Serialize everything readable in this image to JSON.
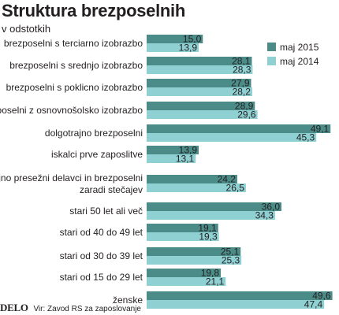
{
  "colors": {
    "series_2015": "#4b8b88",
    "series_2014": "#8fd0d3",
    "text": "#231f20"
  },
  "footer": {
    "logo": "DELO",
    "source": "Vir: Zavod RS za zaposlovanje"
  },
  "chart_data": {
    "type": "bar",
    "orientation": "horizontal",
    "title": "Struktura brezposelnih",
    "subtitle": "v odstotkih",
    "categories": [
      "brezposelni s terciarno izobrazbo",
      "brezposelni s srednjo izobrazbo",
      "brezposelni s poklicno izobrazbo",
      "brezposelni z osnovnošolsko izobrazbo",
      "dolgotrajno brezposelni",
      "iskalci prve zaposlitve",
      "trajno presežni delavci in brezposelni zaradi stečajev",
      "stari 50 let ali več",
      "stari od 40 do 49 let",
      "stari od 30 do 39 let",
      "stari od 15 do 29 let",
      "ženske"
    ],
    "category_lines": [
      [
        "brezposelni s terciarno izobrazbo"
      ],
      [
        "brezposelni s srednjo izobrazbo"
      ],
      [
        "brezposelni s poklicno izobrazbo"
      ],
      [
        "brezposelni z osnovnošolsko izobrazbo"
      ],
      [
        "dolgotrajno brezposelni"
      ],
      [
        "iskalci prve zaposlitve"
      ],
      [
        "trajno presežni delavci in brezposelni",
        "zaradi stečajev"
      ],
      [
        "stari 50 let ali več"
      ],
      [
        "stari od 40 do 49 let"
      ],
      [
        "stari od 30 do 39 let"
      ],
      [
        "stari od 15 do 29 let"
      ],
      [
        "ženske"
      ]
    ],
    "series": [
      {
        "name": "maj 2015",
        "values": [
          15.0,
          28.1,
          27.9,
          28.9,
          49.1,
          13.9,
          24.2,
          36.0,
          19.1,
          25.1,
          19.8,
          49.6
        ],
        "labels": [
          "15,0",
          "28,1",
          "27,9",
          "28,9",
          "49,1",
          "13,9",
          "24,2",
          "36,0",
          "19,1",
          "25,1",
          "19,8",
          "49,6"
        ]
      },
      {
        "name": "maj 2014",
        "values": [
          13.9,
          28.3,
          28.2,
          29.6,
          45.3,
          13.1,
          26.5,
          34.3,
          19.3,
          25.3,
          21.1,
          47.4
        ],
        "labels": [
          "13,9",
          "28,3",
          "28,2",
          "29,6",
          "45,3",
          "13,1",
          "26,5",
          "34,3",
          "19,3",
          "25,3",
          "21,1",
          "47,4"
        ]
      }
    ],
    "xlim": [
      0,
      50
    ],
    "grid": false,
    "legend_position": "top-right"
  }
}
